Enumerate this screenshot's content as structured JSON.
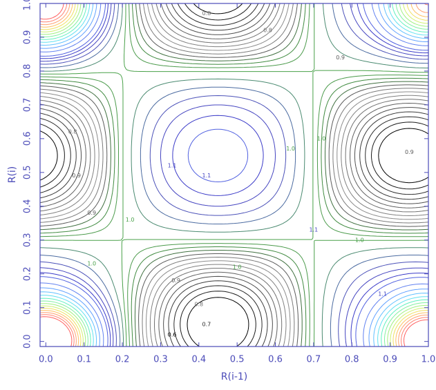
{
  "chart_data": {
    "type": "contour",
    "xlabel": "R(i-1)",
    "ylabel": "R(i)",
    "xlim": [
      -0.015,
      1.0
    ],
    "ylim": [
      -0.015,
      1.0
    ],
    "xticks": [
      {
        "value": 0,
        "label": "0.0"
      },
      0.1,
      0.2,
      0.3,
      0.4,
      0.5,
      0.6,
      0.7,
      0.8,
      0.9,
      {
        "value": 1,
        "label": "1.0"
      }
    ],
    "yticks": [
      {
        "value": 0,
        "label": "0.0"
      },
      0.1,
      0.2,
      0.3,
      0.4,
      0.5,
      0.6,
      0.7,
      0.8,
      0.9,
      {
        "value": 1,
        "label": "1.0"
      }
    ],
    "levels": [
      0.65,
      0.675,
      0.7,
      0.725,
      0.75,
      0.775,
      0.8,
      0.825,
      0.85,
      0.875,
      0.9,
      0.925,
      0.95,
      0.975,
      1.0,
      1.025,
      1.05,
      1.075,
      1.1,
      1.125,
      1.15,
      1.2,
      1.25,
      1.3,
      1.35,
      1.4,
      1.45,
      1.5,
      1.55,
      1.6,
      1.65,
      1.7,
      1.75,
      1.8
    ],
    "colors": [
      "#000000",
      "#1a1a1a",
      "#2a2a2a",
      "#3c3c3c",
      "#4e4e4e",
      "#606060",
      "#707070",
      "#808080",
      "#8c8c8c",
      "#7a7a7a",
      "#5a5a5a",
      "#3f6f3f",
      "#3f8a3f",
      "#4a9a4a",
      "#48a048",
      "#4a8a70",
      "#4a6aa0",
      "#4a50b8",
      "#4444c0",
      "#3a3ac8",
      "#5060e0",
      "#6080f0",
      "#60a0ff",
      "#60c0ff",
      "#60e0f0",
      "#60f0c0",
      "#80f0a0",
      "#a0f080",
      "#d0f070",
      "#f0e060",
      "#ffc060",
      "#ffa070",
      "#ff8070",
      "#ff6060"
    ],
    "contour_labels": [
      {
        "x": 0.42,
        "y": 0.49,
        "value": 1.1,
        "label": "1.1"
      },
      {
        "x": 0.33,
        "y": 0.52,
        "value": 1.1,
        "label": "1.1"
      },
      {
        "x": 0.22,
        "y": 0.36,
        "value": 1,
        "label": "1.0"
      },
      {
        "x": 0.64,
        "y": 0.57,
        "value": 1,
        "label": "1.0"
      },
      {
        "x": 0.72,
        "y": 0.6,
        "value": 1,
        "label": "1.0"
      },
      {
        "x": 0.12,
        "y": 0.38,
        "value": 0.9,
        "label": "0.9"
      },
      {
        "x": 0.08,
        "y": 0.49,
        "value": 0.9,
        "label": "0.9"
      },
      {
        "x": 0.07,
        "y": 0.62,
        "value": 0.8,
        "label": "0.8"
      },
      {
        "x": 0.95,
        "y": 0.56,
        "value": 0.9,
        "label": "0.9"
      },
      {
        "x": 0.77,
        "y": 0.84,
        "value": 0.9,
        "label": "0.9"
      },
      {
        "x": 0.58,
        "y": 0.92,
        "value": 0.8,
        "label": "0.8"
      },
      {
        "x": 0.42,
        "y": 0.97,
        "value": 0.8,
        "label": "0.8"
      },
      {
        "x": 0.34,
        "y": 0.18,
        "value": 0.9,
        "label": "0.9"
      },
      {
        "x": 0.4,
        "y": 0.11,
        "value": 0.8,
        "label": "0.8"
      },
      {
        "x": 0.42,
        "y": 0.05,
        "value": 0.7,
        "label": "0.7"
      },
      {
        "x": 0.33,
        "y": 0.02,
        "value": 0.6,
        "label": "0.6"
      },
      {
        "x": 0.5,
        "y": 0.22,
        "value": 1,
        "label": "1.0"
      },
      {
        "x": 0.7,
        "y": 0.33,
        "value": 1.1,
        "label": "1.1"
      },
      {
        "x": 0.82,
        "y": 0.3,
        "value": 1,
        "label": "1.0"
      },
      {
        "x": 0.88,
        "y": 0.14,
        "value": 1.1,
        "label": "1.1"
      },
      {
        "x": 0.12,
        "y": 0.23,
        "value": 1,
        "label": "1.0"
      }
    ]
  }
}
